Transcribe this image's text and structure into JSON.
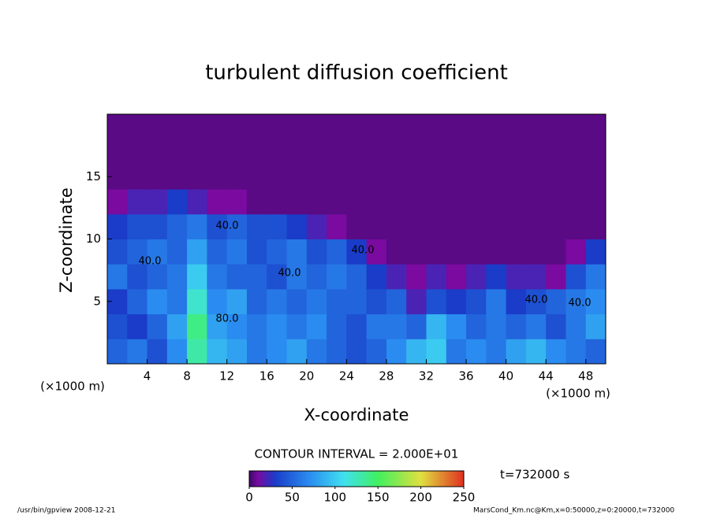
{
  "chart_data": {
    "type": "heatmap",
    "title": "turbulent diffusion coefficient",
    "x_label": "X-coordinate",
    "y_label": "Z-coordinate",
    "x_unit_left": "(×1000 m)",
    "x_unit_right": "(×1000 m)",
    "xlim": [
      0,
      50
    ],
    "xticks": [
      4,
      8,
      12,
      16,
      20,
      24,
      28,
      32,
      36,
      40,
      44,
      48
    ],
    "ylim": [
      0,
      20
    ],
    "yticks": [
      5,
      10,
      15
    ],
    "x": [
      1,
      3,
      5,
      7,
      9,
      11,
      13,
      15,
      17,
      19,
      21,
      23,
      25,
      27,
      29,
      31,
      33,
      35,
      37,
      39,
      41,
      43,
      45,
      47,
      49
    ],
    "y": [
      1,
      3,
      5,
      7,
      9,
      11,
      13,
      15,
      17,
      19
    ],
    "z": [
      [
        50,
        60,
        40,
        70,
        130,
        90,
        80,
        60,
        70,
        80,
        60,
        50,
        40,
        50,
        70,
        90,
        100,
        60,
        70,
        60,
        80,
        90,
        70,
        60,
        50
      ],
      [
        40,
        30,
        50,
        80,
        140,
        80,
        70,
        60,
        70,
        60,
        70,
        50,
        40,
        60,
        60,
        50,
        90,
        70,
        50,
        60,
        50,
        60,
        40,
        60,
        80
      ],
      [
        30,
        50,
        70,
        60,
        120,
        70,
        80,
        50,
        60,
        50,
        60,
        50,
        50,
        40,
        50,
        20,
        40,
        30,
        40,
        60,
        30,
        40,
        50,
        60,
        70
      ],
      [
        60,
        40,
        50,
        60,
        100,
        60,
        50,
        50,
        40,
        60,
        50,
        60,
        50,
        30,
        20,
        10,
        20,
        10,
        20,
        30,
        20,
        20,
        10,
        40,
        60
      ],
      [
        40,
        50,
        60,
        50,
        80,
        50,
        60,
        40,
        50,
        60,
        40,
        50,
        30,
        10,
        5,
        5,
        5,
        5,
        5,
        5,
        5,
        5,
        5,
        10,
        30
      ],
      [
        30,
        40,
        40,
        50,
        60,
        40,
        50,
        40,
        40,
        30,
        20,
        10,
        5,
        5,
        5,
        5,
        5,
        5,
        5,
        5,
        5,
        5,
        5,
        5,
        5
      ],
      [
        10,
        20,
        20,
        30,
        20,
        10,
        10,
        5,
        5,
        5,
        5,
        5,
        5,
        5,
        5,
        5,
        5,
        5,
        5,
        5,
        5,
        5,
        5,
        5,
        5
      ],
      [
        5,
        5,
        5,
        5,
        5,
        5,
        5,
        5,
        5,
        5,
        5,
        5,
        5,
        5,
        5,
        5,
        5,
        5,
        5,
        5,
        5,
        5,
        5,
        5,
        5
      ],
      [
        5,
        5,
        5,
        5,
        5,
        5,
        5,
        5,
        5,
        5,
        5,
        5,
        5,
        5,
        5,
        5,
        5,
        5,
        5,
        5,
        5,
        5,
        5,
        5,
        5
      ],
      [
        5,
        5,
        5,
        5,
        5,
        5,
        5,
        5,
        5,
        5,
        5,
        5,
        5,
        5,
        5,
        5,
        5,
        5,
        5,
        5,
        5,
        5,
        5,
        5,
        5
      ]
    ],
    "contour_labels": [
      "40.0",
      "40.0",
      "40.0",
      "40.0",
      "40.0",
      "40.0",
      "80.0"
    ],
    "contour_interval": "CONTOUR INTERVAL = 2.000E+01",
    "colorscale": [
      [
        0,
        "#3a0a6a"
      ],
      [
        10,
        "#7a0aa0"
      ],
      [
        30,
        "#1a3cc8"
      ],
      [
        70,
        "#2a8cf0"
      ],
      [
        110,
        "#40e0f0"
      ],
      [
        150,
        "#40f060"
      ],
      [
        200,
        "#e0e040"
      ],
      [
        250,
        "#e03020"
      ]
    ],
    "clim": [
      0,
      250
    ],
    "cticks": [
      0,
      50,
      100,
      150,
      200,
      250
    ],
    "time_label": "t=732000 s",
    "footer_left": "/usr/bin/gpview  2008-12-21",
    "footer_right": "MarsCond_Km.nc@Km,x=0:50000,z=0:20000,t=732000"
  }
}
